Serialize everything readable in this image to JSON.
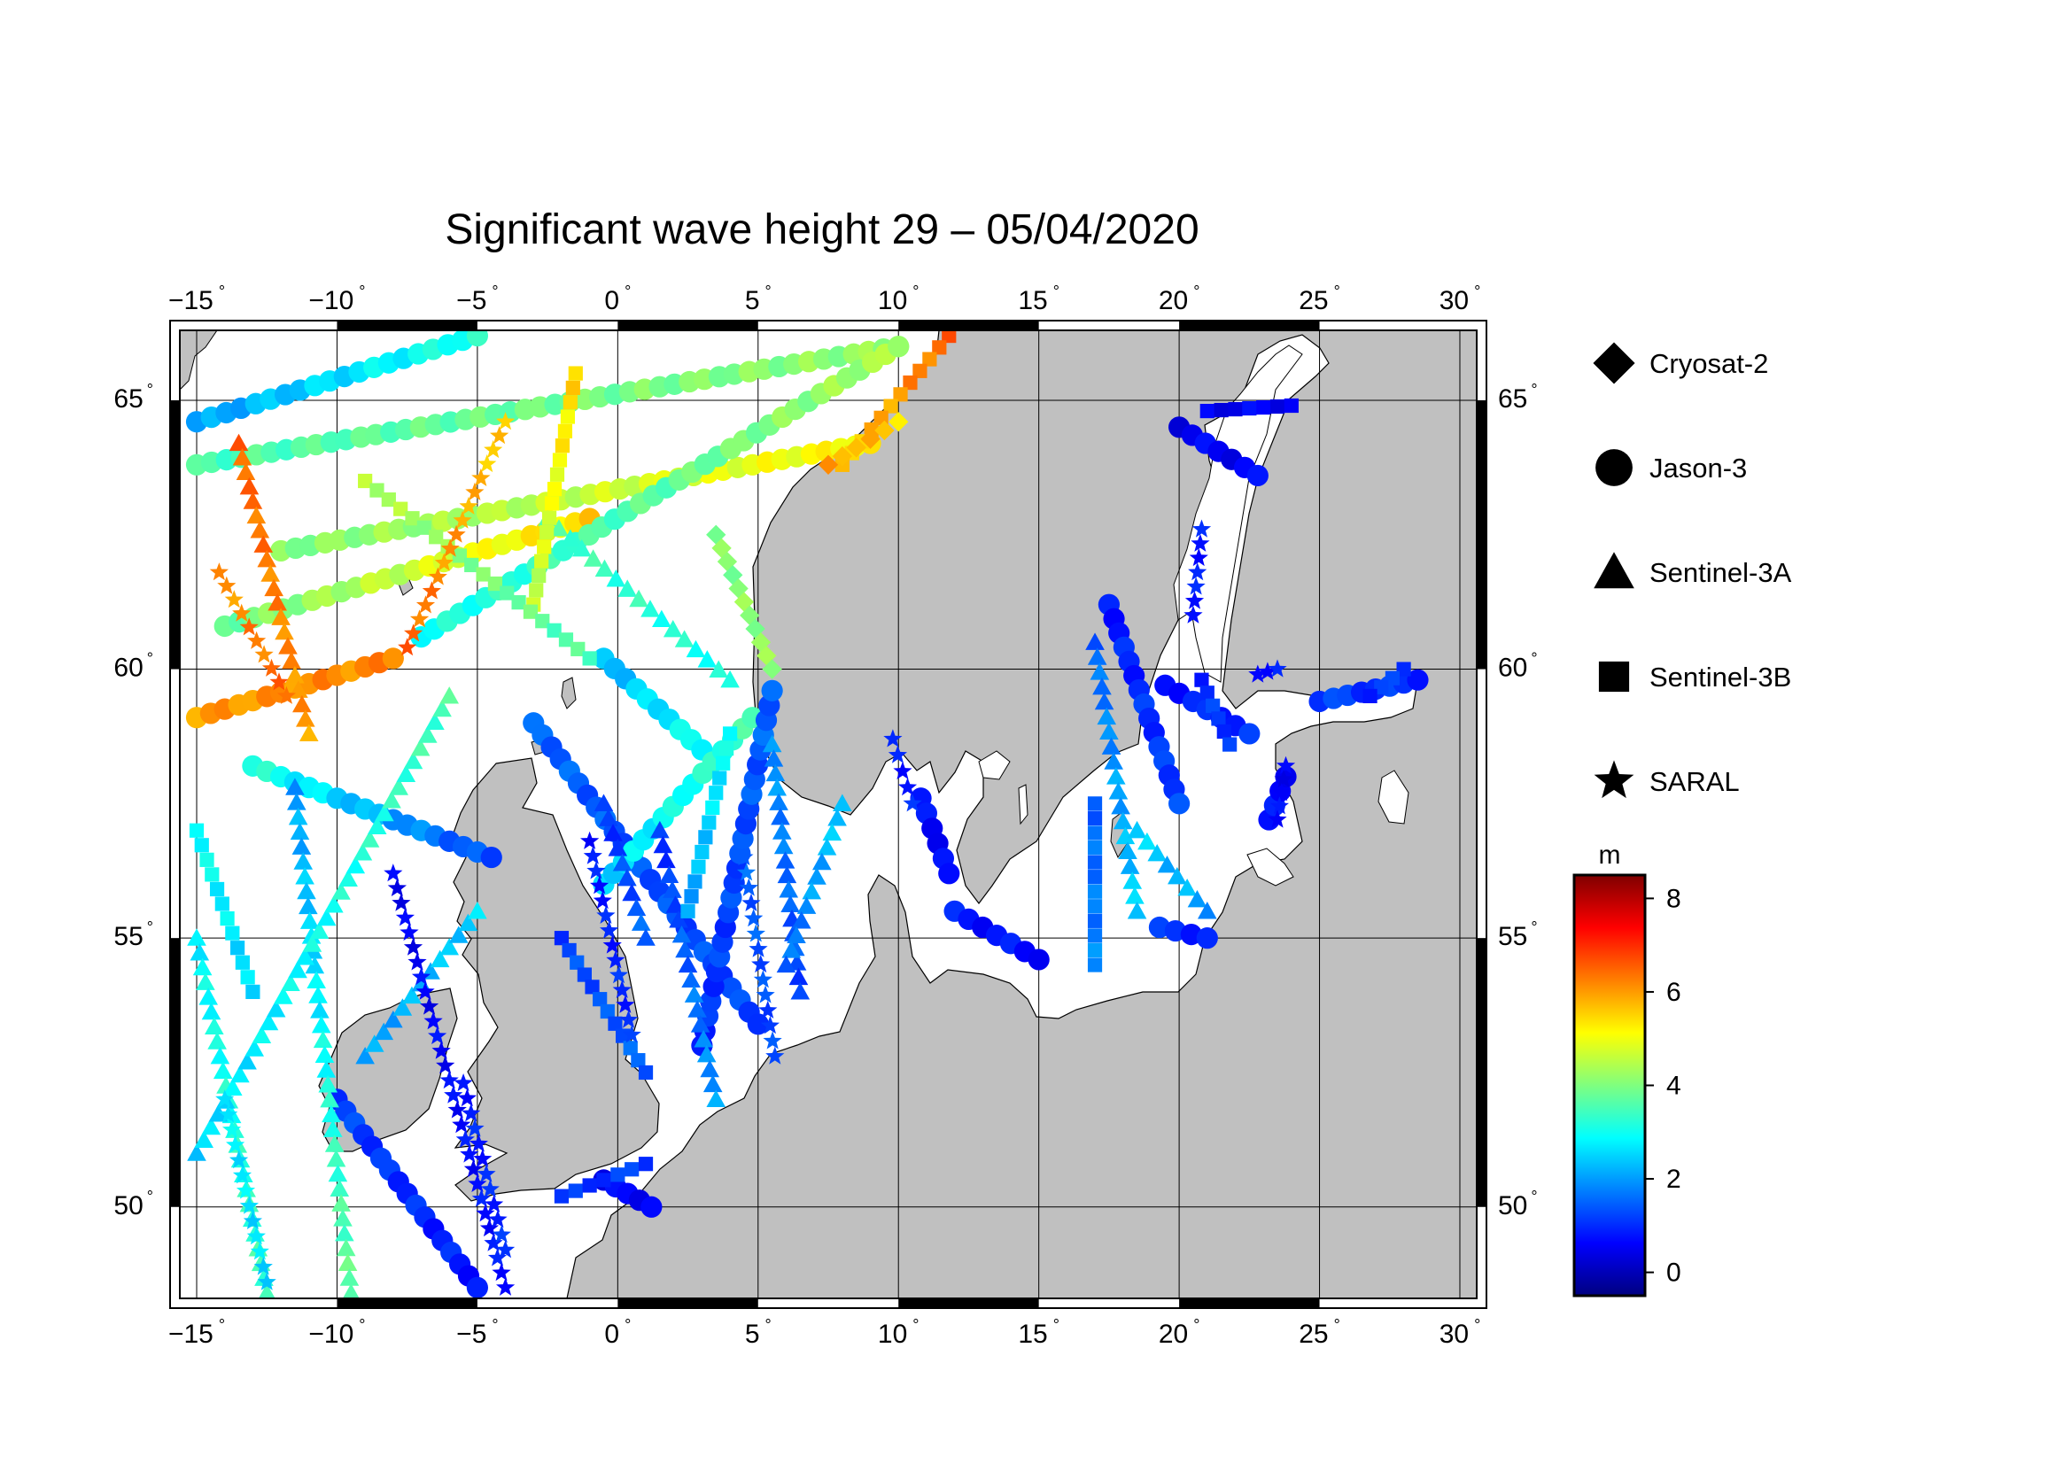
{
  "title": "Significant wave height 29 – 05/04/2020",
  "map": {
    "lon_range": [
      -15.6,
      30.6
    ],
    "lat_range": [
      48.3,
      66.3
    ],
    "lon_ticks": [
      {
        "value": -15,
        "label": "−15"
      },
      {
        "value": -10,
        "label": "−10"
      },
      {
        "value": -5,
        "label": "−5"
      },
      {
        "value": 0,
        "label": "0"
      },
      {
        "value": 5,
        "label": "5"
      },
      {
        "value": 10,
        "label": "10"
      },
      {
        "value": 15,
        "label": "15"
      },
      {
        "value": 20,
        "label": "20"
      },
      {
        "value": 25,
        "label": "25"
      },
      {
        "value": 30,
        "label": "30"
      }
    ],
    "lat_ticks": [
      {
        "value": 50,
        "label": "50"
      },
      {
        "value": 55,
        "label": "55"
      },
      {
        "value": 60,
        "label": "60"
      },
      {
        "value": 65,
        "label": "65"
      }
    ],
    "degree_symbol": "°",
    "land_color": "#c0c0c0",
    "sea_color": "#ffffff",
    "grid": true
  },
  "legend": {
    "items": [
      {
        "label": "Cryosat-2",
        "marker": "diamond"
      },
      {
        "label": "Jason-3",
        "marker": "circle"
      },
      {
        "label": "Sentinel-3A",
        "marker": "triangle"
      },
      {
        "label": "Sentinel-3B",
        "marker": "square"
      },
      {
        "label": "SARAL",
        "marker": "star"
      }
    ]
  },
  "colorbar": {
    "unit": "m",
    "range": [
      -0.5,
      8.5
    ],
    "ticks": [
      {
        "value": 0,
        "label": "0"
      },
      {
        "value": 2,
        "label": "2"
      },
      {
        "value": 4,
        "label": "4"
      },
      {
        "value": 6,
        "label": "6"
      },
      {
        "value": 8,
        "label": "8"
      }
    ],
    "colormap": [
      "#00007f",
      "#0000ff",
      "#007fff",
      "#00ffff",
      "#7fff7f",
      "#ffff00",
      "#ff7f00",
      "#ff0000",
      "#7f0000"
    ]
  },
  "chart_data": {
    "type": "scatter",
    "value_unit": "m",
    "tracks": [
      {
        "satellite": "Jason-3",
        "from": [
          -15,
          64.6
        ],
        "to": [
          -5,
          66.2
        ],
        "hs": [
          2.0,
          3.2
        ]
      },
      {
        "satellite": "Jason-3",
        "from": [
          -15,
          63.8
        ],
        "to": [
          10,
          66.0
        ],
        "hs": [
          3.5,
          4.2
        ]
      },
      {
        "satellite": "Jason-3",
        "from": [
          -12,
          62.2
        ],
        "to": [
          9,
          64.2
        ],
        "hs": [
          4.0,
          5.2
        ]
      },
      {
        "satellite": "Jason-3",
        "from": [
          -14,
          60.8
        ],
        "to": [
          -1,
          62.8
        ],
        "hs": [
          3.8,
          5.5
        ]
      },
      {
        "satellite": "Jason-3",
        "from": [
          -7,
          60.6
        ],
        "to": [
          10,
          66.0
        ],
        "hs": [
          3.0,
          4.4
        ]
      },
      {
        "satellite": "Jason-3",
        "from": [
          -15,
          59.1
        ],
        "to": [
          -8,
          60.2
        ],
        "hs": [
          6.0,
          6.2
        ]
      },
      {
        "satellite": "Jason-3",
        "from": [
          -13,
          58.2
        ],
        "to": [
          -4.5,
          56.5
        ],
        "hs": [
          3.2,
          1.2
        ]
      },
      {
        "satellite": "Jason-3",
        "from": [
          -3,
          59.0
        ],
        "to": [
          5,
          53.4
        ],
        "hs": [
          1.5,
          1.2
        ]
      },
      {
        "satellite": "Jason-3",
        "from": [
          -0.5,
          60.2
        ],
        "to": [
          3,
          58.5
        ],
        "hs": [
          2.2,
          3.0
        ]
      },
      {
        "satellite": "Jason-3",
        "from": [
          -0.5,
          56.0
        ],
        "to": [
          4.8,
          59.1
        ],
        "hs": [
          2.5,
          3.5
        ]
      },
      {
        "satellite": "Jason-3",
        "from": [
          3,
          53.0
        ],
        "to": [
          5.5,
          59.6
        ],
        "hs": [
          1.0,
          1.5
        ]
      },
      {
        "satellite": "Jason-3",
        "from": [
          -10,
          52.0
        ],
        "to": [
          -5,
          48.5
        ],
        "hs": [
          1.2,
          0.8
        ]
      },
      {
        "satellite": "Jason-3",
        "from": [
          -0.5,
          50.5
        ],
        "to": [
          1.2,
          50.0
        ],
        "hs": [
          0.5,
          0.7
        ]
      },
      {
        "satellite": "Jason-3",
        "from": [
          10.8,
          57.6
        ],
        "to": [
          11.8,
          56.2
        ],
        "hs": [
          0.7,
          0.6
        ]
      },
      {
        "satellite": "Jason-3",
        "from": [
          12,
          55.5
        ],
        "to": [
          15,
          54.6
        ],
        "hs": [
          0.8,
          0.7
        ]
      },
      {
        "satellite": "Jason-3",
        "from": [
          17.5,
          61.2
        ],
        "to": [
          20,
          57.5
        ],
        "hs": [
          0.8,
          1.2
        ]
      },
      {
        "satellite": "Jason-3",
        "from": [
          19.5,
          59.7
        ],
        "to": [
          22.5,
          58.8
        ],
        "hs": [
          0.8,
          1.0
        ]
      },
      {
        "satellite": "Jason-3",
        "from": [
          20,
          64.5
        ],
        "to": [
          22.8,
          63.6
        ],
        "hs": [
          0.5,
          0.6
        ]
      },
      {
        "satellite": "Jason-3",
        "from": [
          25,
          59.4
        ],
        "to": [
          28.5,
          59.8
        ],
        "hs": [
          1.2,
          1.0
        ]
      },
      {
        "satellite": "Jason-3",
        "from": [
          23.2,
          57.2
        ],
        "to": [
          23.8,
          58.0
        ],
        "hs": [
          0.7,
          0.7
        ]
      },
      {
        "satellite": "Jason-3",
        "from": [
          19.3,
          55.2
        ],
        "to": [
          21,
          55.0
        ],
        "hs": [
          1.0,
          1.0
        ]
      },
      {
        "satellite": "Sentinel-3A",
        "from": [
          -13.5,
          64.2
        ],
        "to": [
          -11,
          58.8
        ],
        "hs": [
          6.5,
          6.0
        ]
      },
      {
        "satellite": "Sentinel-3A",
        "from": [
          -15,
          55.0
        ],
        "to": [
          -12.5,
          48.4
        ],
        "hs": [
          2.8,
          3.5
        ]
      },
      {
        "satellite": "Sentinel-3A",
        "from": [
          -11.5,
          57.8
        ],
        "to": [
          -9.5,
          48.4
        ],
        "hs": [
          2.0,
          3.8
        ]
      },
      {
        "satellite": "Sentinel-3A",
        "from": [
          -15,
          51.0
        ],
        "to": [
          -6,
          59.5
        ],
        "hs": [
          2.5,
          3.5
        ]
      },
      {
        "satellite": "Sentinel-3A",
        "from": [
          -9,
          52.8
        ],
        "to": [
          -5,
          55.5
        ],
        "hs": [
          2.0,
          2.5
        ]
      },
      {
        "satellite": "Sentinel-3A",
        "from": [
          -0.5,
          57.5
        ],
        "to": [
          1,
          55.0
        ],
        "hs": [
          1.0,
          1.5
        ]
      },
      {
        "satellite": "Sentinel-3A",
        "from": [
          1.5,
          57.0
        ],
        "to": [
          3.5,
          52.0
        ],
        "hs": [
          1.0,
          2.0
        ]
      },
      {
        "satellite": "Sentinel-3A",
        "from": [
          5.5,
          58.6
        ],
        "to": [
          6.5,
          54.0
        ],
        "hs": [
          2.0,
          1.2
        ]
      },
      {
        "satellite": "Sentinel-3A",
        "from": [
          8,
          57.5
        ],
        "to": [
          6,
          54.5
        ],
        "hs": [
          2.5,
          1.5
        ]
      },
      {
        "satellite": "Sentinel-3A",
        "from": [
          17,
          60.5
        ],
        "to": [
          18.5,
          55.5
        ],
        "hs": [
          1.5,
          2.5
        ]
      },
      {
        "satellite": "Sentinel-3A",
        "from": [
          18.5,
          57.0
        ],
        "to": [
          21,
          55.5
        ],
        "hs": [
          2.5,
          2.0
        ]
      },
      {
        "satellite": "Sentinel-3A",
        "from": [
          -2.5,
          62.8
        ],
        "to": [
          4,
          59.8
        ],
        "hs": [
          3.5,
          3.0
        ]
      },
      {
        "satellite": "Sentinel-3B",
        "from": [
          -3,
          61.2
        ],
        "to": [
          -1.5,
          65.5
        ],
        "hs": [
          4.5,
          5.5
        ]
      },
      {
        "satellite": "Sentinel-3B",
        "from": [
          -9,
          63.5
        ],
        "to": [
          -1,
          60.2
        ],
        "hs": [
          4.5,
          3.5
        ]
      },
      {
        "satellite": "Sentinel-3B",
        "from": [
          -15,
          57.0
        ],
        "to": [
          -13,
          54.0
        ],
        "hs": [
          3.0,
          2.5
        ]
      },
      {
        "satellite": "Sentinel-3B",
        "from": [
          -2,
          55.0
        ],
        "to": [
          1,
          52.5
        ],
        "hs": [
          1.2,
          1.5
        ]
      },
      {
        "satellite": "Sentinel-3B",
        "from": [
          4,
          58.8
        ],
        "to": [
          2.5,
          55.5
        ],
        "hs": [
          3.0,
          2.0
        ]
      },
      {
        "satellite": "Sentinel-3B",
        "from": [
          -2,
          50.2
        ],
        "to": [
          1,
          50.8
        ],
        "hs": [
          1.0,
          1.2
        ]
      },
      {
        "satellite": "Sentinel-3B",
        "from": [
          11.8,
          66.2
        ],
        "to": [
          8,
          63.8
        ],
        "hs": [
          6.5,
          5.5
        ]
      },
      {
        "satellite": "Sentinel-3B",
        "from": [
          21,
          64.8
        ],
        "to": [
          24,
          64.9
        ],
        "hs": [
          0.5,
          0.6
        ]
      },
      {
        "satellite": "Sentinel-3B",
        "from": [
          17,
          57.5
        ],
        "to": [
          17,
          54.5
        ],
        "hs": [
          1.5,
          1.8
        ]
      },
      {
        "satellite": "Sentinel-3B",
        "from": [
          20.8,
          59.8
        ],
        "to": [
          21.8,
          58.6
        ],
        "hs": [
          1.0,
          1.2
        ]
      },
      {
        "satellite": "Sentinel-3B",
        "from": [
          28,
          60.0
        ],
        "to": [
          26.8,
          59.5
        ],
        "hs": [
          1.2,
          1.0
        ]
      },
      {
        "satellite": "SARAL",
        "from": [
          -4,
          64.6
        ],
        "to": [
          -7.5,
          60.4
        ],
        "hs": [
          5.5,
          6.5
        ]
      },
      {
        "satellite": "SARAL",
        "from": [
          -14.2,
          61.8
        ],
        "to": [
          -11.8,
          59.5
        ],
        "hs": [
          6.0,
          6.5
        ]
      },
      {
        "satellite": "SARAL",
        "from": [
          -8,
          56.2
        ],
        "to": [
          -4,
          48.5
        ],
        "hs": [
          0.5,
          0.8
        ]
      },
      {
        "satellite": "SARAL",
        "from": [
          -5.5,
          52.3
        ],
        "to": [
          -4,
          49.2
        ],
        "hs": [
          0.8,
          1.0
        ]
      },
      {
        "satellite": "SARAL",
        "from": [
          -14,
          52.0
        ],
        "to": [
          -12.5,
          48.6
        ],
        "hs": [
          2.8,
          2.5
        ]
      },
      {
        "satellite": "SARAL",
        "from": [
          -1,
          56.8
        ],
        "to": [
          0.5,
          53.2
        ],
        "hs": [
          0.8,
          1.0
        ]
      },
      {
        "satellite": "SARAL",
        "from": [
          4.5,
          56.5
        ],
        "to": [
          5.6,
          52.8
        ],
        "hs": [
          1.5,
          1.2
        ]
      },
      {
        "satellite": "SARAL",
        "from": [
          9.8,
          58.7
        ],
        "to": [
          10.5,
          57.5
        ],
        "hs": [
          0.8,
          0.9
        ]
      },
      {
        "satellite": "SARAL",
        "from": [
          20.8,
          62.6
        ],
        "to": [
          20.5,
          61.0
        ],
        "hs": [
          0.8,
          0.9
        ]
      },
      {
        "satellite": "SARAL",
        "from": [
          23.8,
          58.2
        ],
        "to": [
          23.5,
          57.2
        ],
        "hs": [
          0.6,
          0.6
        ]
      },
      {
        "satellite": "SARAL",
        "from": [
          22.8,
          59.9
        ],
        "to": [
          23.5,
          60.0
        ],
        "hs": [
          0.8,
          0.8
        ]
      },
      {
        "satellite": "Cryosat-2",
        "from": [
          10,
          64.6
        ],
        "to": [
          7.5,
          63.8
        ],
        "hs": [
          5.5,
          6.0
        ]
      },
      {
        "satellite": "Cryosat-2",
        "from": [
          3.5,
          62.5
        ],
        "to": [
          5.5,
          60.0
        ],
        "hs": [
          4.0,
          4.2
        ]
      }
    ]
  }
}
